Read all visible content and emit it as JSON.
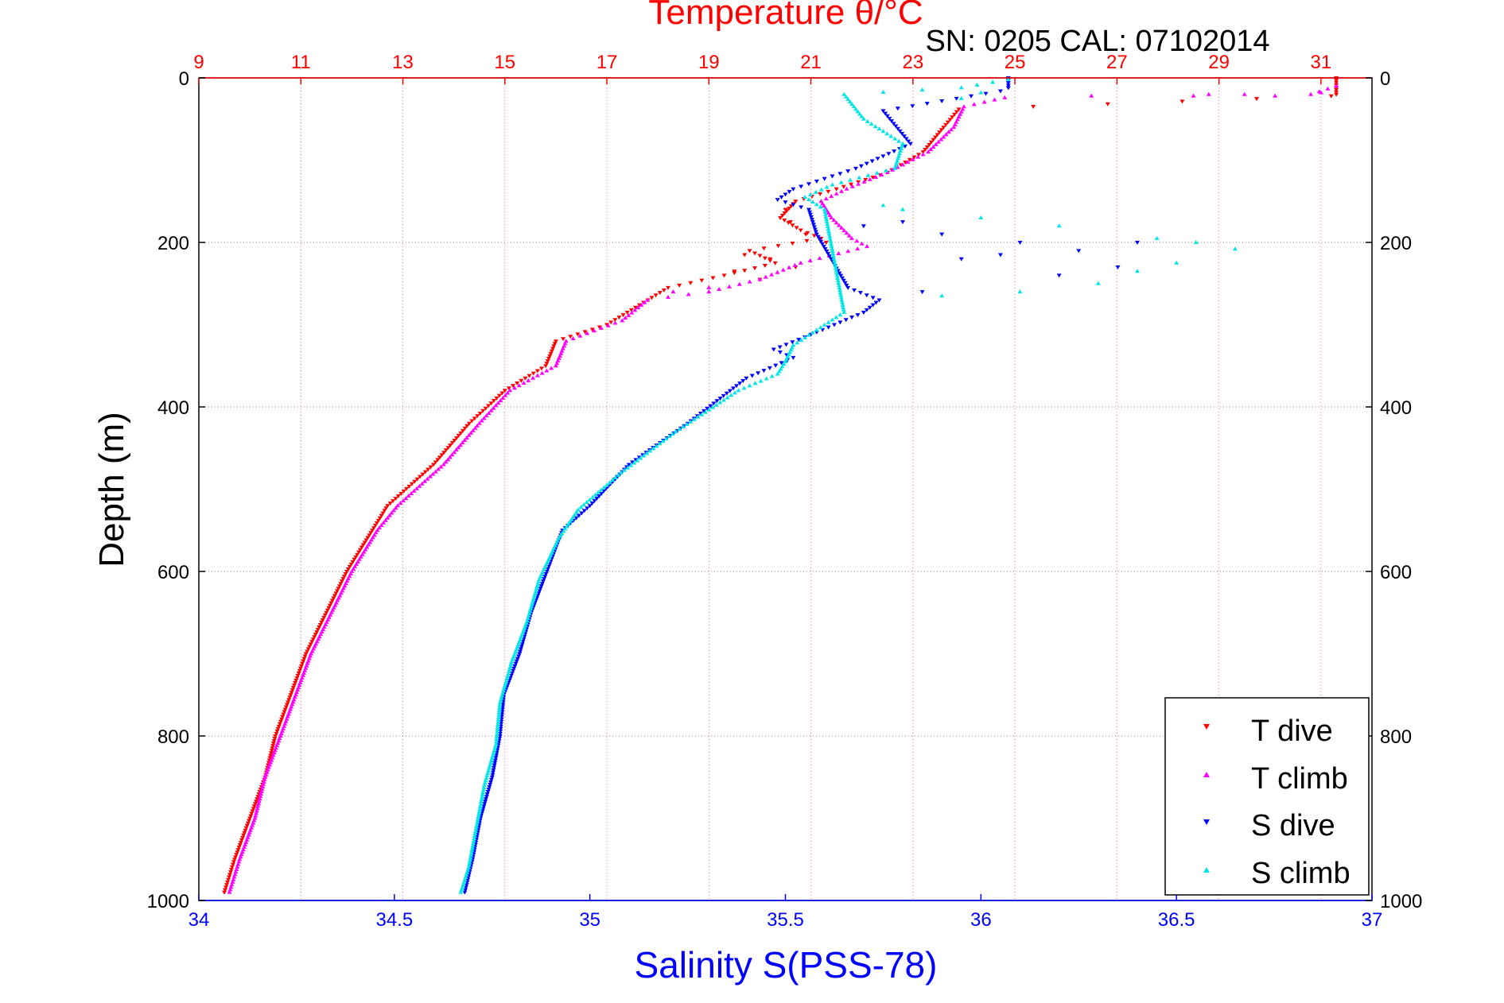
{
  "chart_data": {
    "type": "scatter",
    "title": "Temperature θ/°C",
    "subtitle": "SN: 0205  CAL: 07102014",
    "ylabel": "Depth (m)",
    "xlabel_bottom": "Salinity S(PSS-78)",
    "xlabel_top": "Temperature θ/°C",
    "grid": true,
    "legend_position": "bottom-right",
    "y_reversed": true,
    "axes": {
      "depth": {
        "range": [
          0,
          1000
        ],
        "ticks": [
          "0",
          "200",
          "400",
          "600",
          "800",
          "1000"
        ]
      },
      "salinity": {
        "range": [
          34,
          37
        ],
        "ticks": [
          "34",
          "34.5",
          "35",
          "35.5",
          "36",
          "36.5",
          "37"
        ]
      },
      "temperature": {
        "range": [
          9,
          32
        ],
        "ticks": [
          "9",
          "11",
          "13",
          "15",
          "17",
          "19",
          "21",
          "23",
          "25",
          "27",
          "29",
          "31"
        ]
      }
    },
    "colors": {
      "temp_axis": "#ff0000",
      "sal_axis": "#0000ff",
      "t_dive": "#ff0000",
      "t_climb": "#ff00ff",
      "s_dive": "#0000ff",
      "s_climb": "#00e6e6"
    },
    "series": [
      {
        "name": "T dive",
        "axis": "temperature",
        "marker": "triangle-down",
        "profile": [
          [
            31.3,
            0
          ],
          [
            31.3,
            20
          ],
          [
            31.2,
            22
          ],
          [
            23.9,
            38
          ],
          [
            23.6,
            60
          ],
          [
            23.2,
            90
          ],
          [
            22.5,
            115
          ],
          [
            21.5,
            135
          ],
          [
            20.7,
            150
          ],
          [
            20.4,
            170
          ],
          [
            20.8,
            185
          ],
          [
            21.2,
            195
          ],
          [
            19.8,
            210
          ],
          [
            20.3,
            225
          ],
          [
            19.3,
            240
          ],
          [
            18.2,
            255
          ],
          [
            17.8,
            270
          ],
          [
            17.0,
            300
          ],
          [
            16.0,
            320
          ],
          [
            15.8,
            350
          ],
          [
            15.0,
            380
          ],
          [
            14.3,
            420
          ],
          [
            13.6,
            470
          ],
          [
            12.7,
            520
          ],
          [
            12.4,
            550
          ],
          [
            11.9,
            600
          ],
          [
            11.5,
            650
          ],
          [
            11.1,
            700
          ],
          [
            10.8,
            750
          ],
          [
            10.5,
            800
          ],
          [
            10.3,
            850
          ],
          [
            10.0,
            900
          ],
          [
            9.7,
            950
          ],
          [
            9.5,
            990
          ]
        ],
        "scatter": [
          [
            20.5,
            160
          ],
          [
            20.6,
            175
          ],
          [
            20.9,
            190
          ],
          [
            19.7,
            215
          ],
          [
            20.2,
            220
          ],
          [
            20.7,
            230
          ],
          [
            19.5,
            235
          ],
          [
            20.0,
            245
          ],
          [
            21.3,
            200
          ]
        ]
      },
      {
        "name": "T climb",
        "axis": "temperature",
        "marker": "triangle-up",
        "profile": [
          [
            31.3,
            10
          ],
          [
            30.8,
            20
          ],
          [
            28.5,
            22
          ],
          [
            24.8,
            24
          ],
          [
            24.0,
            35
          ],
          [
            23.8,
            60
          ],
          [
            23.3,
            90
          ],
          [
            22.5,
            115
          ],
          [
            21.7,
            135
          ],
          [
            21.2,
            150
          ],
          [
            21.4,
            170
          ],
          [
            21.8,
            195
          ],
          [
            22.1,
            205
          ],
          [
            20.8,
            225
          ],
          [
            20.0,
            245
          ],
          [
            19.0,
            260
          ],
          [
            17.8,
            270
          ],
          [
            17.3,
            295
          ],
          [
            16.2,
            320
          ],
          [
            16.0,
            350
          ],
          [
            15.1,
            380
          ],
          [
            14.5,
            420
          ],
          [
            13.8,
            470
          ],
          [
            12.9,
            520
          ],
          [
            12.5,
            550
          ],
          [
            12.0,
            600
          ],
          [
            11.6,
            650
          ],
          [
            11.2,
            700
          ],
          [
            10.9,
            750
          ],
          [
            10.6,
            800
          ],
          [
            10.3,
            850
          ],
          [
            10.1,
            900
          ],
          [
            9.8,
            950
          ],
          [
            9.6,
            990
          ]
        ],
        "scatter": [
          [
            28.8,
            20
          ],
          [
            30.1,
            22
          ],
          [
            31.0,
            18
          ],
          [
            26.5,
            22
          ],
          [
            29.5,
            20
          ],
          [
            18.3,
            260
          ],
          [
            19.0,
            255
          ]
        ]
      },
      {
        "name": "S dive",
        "axis": "salinity",
        "marker": "triangle-down",
        "profile": [
          [
            36.07,
            0
          ],
          [
            36.07,
            12
          ],
          [
            36.05,
            16
          ],
          [
            35.75,
            40
          ],
          [
            35.82,
            80
          ],
          [
            35.68,
            110
          ],
          [
            35.52,
            135
          ],
          [
            35.48,
            148
          ],
          [
            35.56,
            160
          ],
          [
            35.58,
            190
          ],
          [
            35.66,
            255
          ],
          [
            35.74,
            270
          ],
          [
            35.7,
            285
          ],
          [
            35.55,
            315
          ],
          [
            35.47,
            330
          ],
          [
            35.52,
            340
          ],
          [
            35.4,
            365
          ],
          [
            35.25,
            420
          ],
          [
            35.1,
            470
          ],
          [
            35.0,
            520
          ],
          [
            34.93,
            550
          ],
          [
            34.89,
            600
          ],
          [
            34.85,
            650
          ],
          [
            34.82,
            700
          ],
          [
            34.78,
            750
          ],
          [
            34.77,
            800
          ],
          [
            34.75,
            850
          ],
          [
            34.72,
            900
          ],
          [
            34.7,
            950
          ],
          [
            34.68,
            990
          ]
        ],
        "scatter": [
          [
            35.9,
            190
          ],
          [
            36.1,
            200
          ],
          [
            35.95,
            220
          ],
          [
            36.2,
            240
          ],
          [
            36.35,
            230
          ],
          [
            35.85,
            260
          ],
          [
            36.05,
            215
          ],
          [
            36.25,
            210
          ],
          [
            36.4,
            200
          ],
          [
            35.7,
            180
          ],
          [
            35.8,
            175
          ]
        ]
      },
      {
        "name": "S climb",
        "axis": "salinity",
        "marker": "triangle-up",
        "profile": [
          [
            36.07,
            2
          ],
          [
            35.95,
            12
          ],
          [
            35.65,
            20
          ],
          [
            35.7,
            50
          ],
          [
            35.8,
            80
          ],
          [
            35.78,
            110
          ],
          [
            35.62,
            130
          ],
          [
            35.55,
            145
          ],
          [
            35.6,
            160
          ],
          [
            35.65,
            285
          ],
          [
            35.52,
            325
          ],
          [
            35.5,
            345
          ],
          [
            35.48,
            360
          ],
          [
            35.38,
            380
          ],
          [
            35.22,
            430
          ],
          [
            35.08,
            480
          ],
          [
            34.97,
            525
          ],
          [
            34.92,
            560
          ],
          [
            34.87,
            610
          ],
          [
            34.84,
            660
          ],
          [
            34.8,
            710
          ],
          [
            34.77,
            760
          ],
          [
            34.76,
            810
          ],
          [
            34.73,
            860
          ],
          [
            34.71,
            910
          ],
          [
            34.69,
            960
          ],
          [
            34.67,
            990
          ]
        ],
        "scatter": [
          [
            35.75,
            155
          ],
          [
            35.8,
            160
          ],
          [
            36.0,
            170
          ],
          [
            36.2,
            180
          ],
          [
            36.45,
            195
          ],
          [
            36.55,
            200
          ],
          [
            36.65,
            208
          ],
          [
            36.5,
            225
          ],
          [
            36.4,
            235
          ],
          [
            36.3,
            250
          ],
          [
            35.9,
            265
          ],
          [
            36.1,
            260
          ],
          [
            35.95,
            25
          ],
          [
            36.0,
            18
          ]
        ]
      }
    ]
  }
}
